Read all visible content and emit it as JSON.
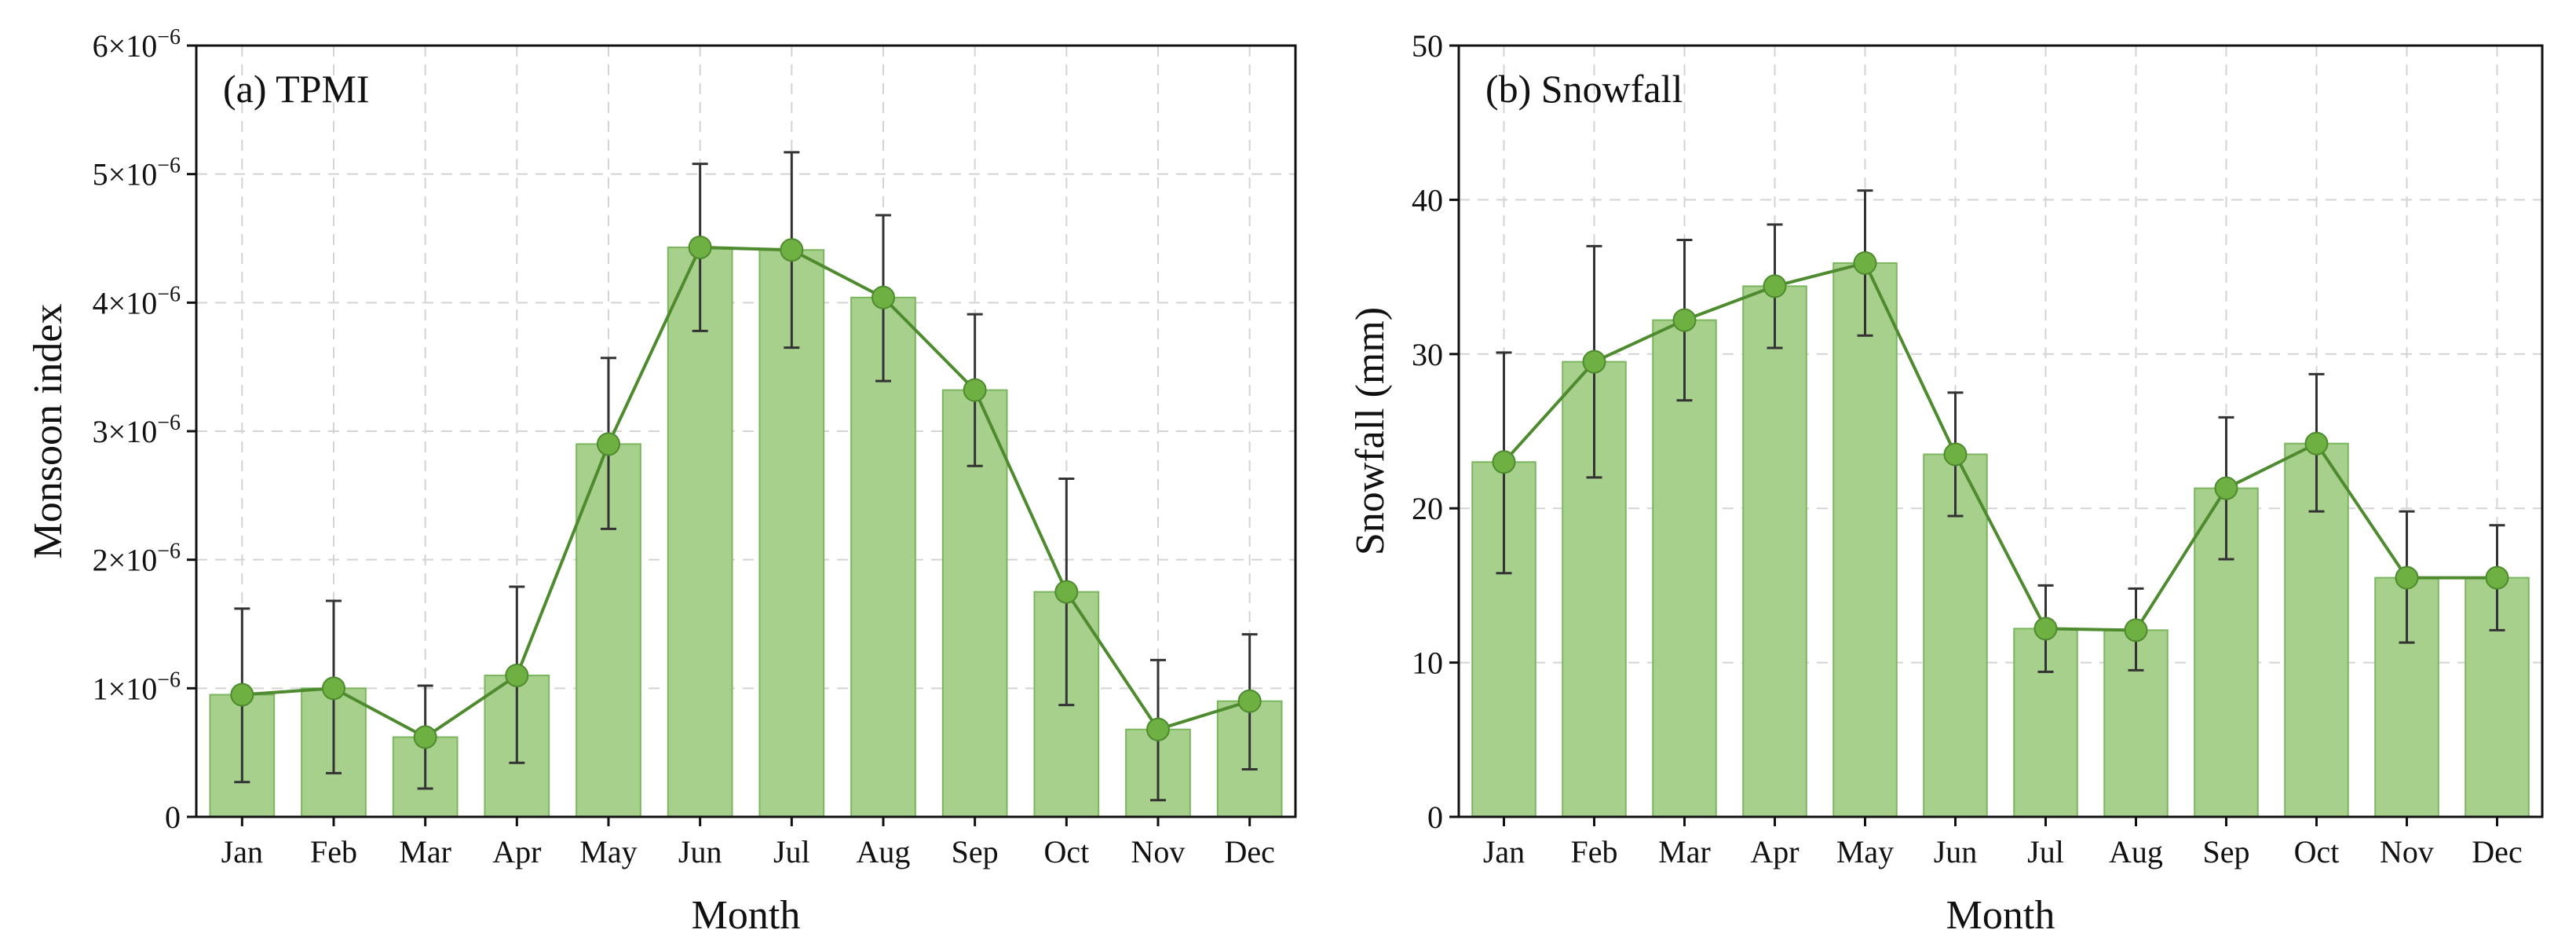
{
  "colors": {
    "bar_fill": "#a8d08d",
    "bar_stroke": "#7bb65f",
    "line": "#4e8a2e",
    "marker": "#6fb043",
    "errorbar": "#333333",
    "grid": "#d4d4d4"
  },
  "chart_data": [
    {
      "type": "bar",
      "title": "(a) TPMI",
      "xlabel": "Month",
      "ylabel": "Monsoon index",
      "categories": [
        "Jan",
        "Feb",
        "Mar",
        "Apr",
        "May",
        "Jun",
        "Jul",
        "Aug",
        "Sep",
        "Oct",
        "Nov",
        "Dec"
      ],
      "values": [
        0.95,
        1.0,
        0.62,
        1.1,
        2.9,
        4.43,
        4.41,
        4.04,
        3.32,
        1.75,
        0.68,
        0.9
      ],
      "line_values": [
        0.95,
        1.0,
        0.62,
        1.1,
        2.9,
        4.43,
        4.41,
        4.04,
        3.32,
        1.75,
        0.68,
        0.9
      ],
      "error_upper": [
        1.62,
        1.68,
        1.02,
        1.79,
        3.57,
        5.08,
        5.17,
        4.68,
        3.91,
        2.63,
        1.22,
        1.42
      ],
      "error_lower": [
        0.27,
        0.34,
        0.22,
        0.42,
        2.24,
        3.78,
        3.65,
        3.39,
        2.73,
        0.87,
        0.13,
        0.37
      ],
      "ylim": [
        0,
        6
      ],
      "yticks": [
        0,
        1,
        2,
        3,
        4,
        5,
        6
      ],
      "ytick_labels": [
        {
          "base": "0",
          "exp": ""
        },
        {
          "base": "1×10",
          "exp": "−6"
        },
        {
          "base": "2×10",
          "exp": "−6"
        },
        {
          "base": "3×10",
          "exp": "−6"
        },
        {
          "base": "4×10",
          "exp": "−6"
        },
        {
          "base": "5×10",
          "exp": "−6"
        },
        {
          "base": "6×10",
          "exp": "−6"
        }
      ],
      "value_scale": "1e-6",
      "grid": true
    },
    {
      "type": "bar",
      "title": "(b) Snowfall",
      "xlabel": "Month",
      "ylabel": "Snowfall (mm)",
      "categories": [
        "Jan",
        "Feb",
        "Mar",
        "Apr",
        "May",
        "Jun",
        "Jul",
        "Aug",
        "Sep",
        "Oct",
        "Nov",
        "Dec"
      ],
      "values": [
        23.0,
        29.5,
        32.2,
        34.4,
        35.9,
        23.5,
        12.2,
        12.1,
        21.3,
        24.2,
        15.5,
        15.5
      ],
      "line_values": [
        23.0,
        29.5,
        32.2,
        34.4,
        35.9,
        23.5,
        12.2,
        12.1,
        21.3,
        24.2,
        15.5,
        15.5
      ],
      "error_upper": [
        30.1,
        37.0,
        37.4,
        38.4,
        40.6,
        27.5,
        15.0,
        14.8,
        25.9,
        28.7,
        19.8,
        18.9
      ],
      "error_lower": [
        15.8,
        22.0,
        27.0,
        30.4,
        31.2,
        19.5,
        9.4,
        9.5,
        16.7,
        19.8,
        11.3,
        12.1
      ],
      "ylim": [
        0,
        50
      ],
      "yticks": [
        0,
        10,
        20,
        30,
        40,
        50
      ],
      "ytick_labels": [
        {
          "base": "0",
          "exp": ""
        },
        {
          "base": "10",
          "exp": ""
        },
        {
          "base": "20",
          "exp": ""
        },
        {
          "base": "30",
          "exp": ""
        },
        {
          "base": "40",
          "exp": ""
        },
        {
          "base": "50",
          "exp": ""
        }
      ],
      "grid": true
    }
  ]
}
